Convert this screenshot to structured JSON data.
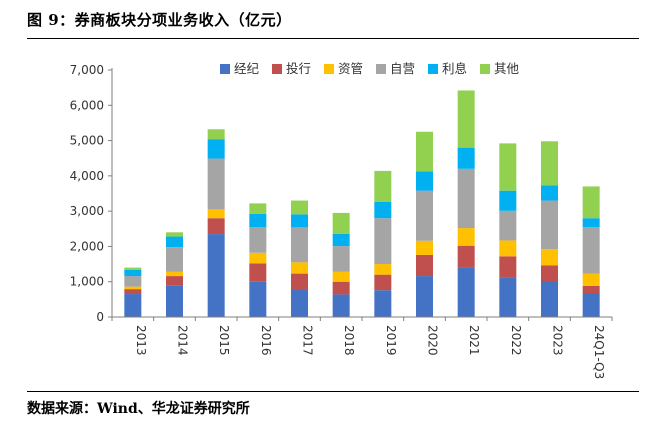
{
  "figure": {
    "title": "图 9：券商板块分项业务收入（亿元）",
    "source": "数据来源：Wind、华龙证券研究所"
  },
  "chart_data": {
    "type": "bar",
    "stacked": true,
    "title": "券商板块分项业务收入（亿元）",
    "xlabel": "",
    "ylabel": "",
    "ylim": [
      0,
      7000
    ],
    "yticks": [
      0,
      1000,
      2000,
      3000,
      4000,
      5000,
      6000,
      7000
    ],
    "ytick_labels": [
      "0",
      "1,000",
      "2,000",
      "3,000",
      "4,000",
      "5,000",
      "6,000",
      "7,000"
    ],
    "grid": false,
    "legend_position": "top-center",
    "categories": [
      "2013",
      "2014",
      "2015",
      "2016",
      "2017",
      "2018",
      "2019",
      "2020",
      "2021",
      "2022",
      "2023",
      "24Q1-Q3"
    ],
    "series": [
      {
        "name": "经纪",
        "color": "#4472C4",
        "values": [
          650,
          900,
          2350,
          1000,
          780,
          640,
          760,
          1160,
          1400,
          1130,
          1020,
          680
        ]
      },
      {
        "name": "投行",
        "color": "#C0504D",
        "values": [
          140,
          260,
          450,
          520,
          450,
          360,
          440,
          600,
          620,
          590,
          440,
          200
        ]
      },
      {
        "name": "资管",
        "color": "#FFC000",
        "values": [
          70,
          120,
          250,
          300,
          320,
          280,
          300,
          400,
          500,
          450,
          460,
          350
        ]
      },
      {
        "name": "自营",
        "color": "#A5A5A5",
        "values": [
          300,
          700,
          1440,
          730,
          990,
          730,
          1300,
          1420,
          1680,
          840,
          1380,
          1320
        ]
      },
      {
        "name": "利息",
        "color": "#00B0F0",
        "values": [
          180,
          300,
          550,
          370,
          370,
          350,
          460,
          550,
          600,
          570,
          430,
          250
        ]
      },
      {
        "name": "其他",
        "color": "#92D050",
        "values": [
          60,
          120,
          280,
          300,
          390,
          590,
          880,
          1120,
          1620,
          1340,
          1250,
          900
        ]
      }
    ]
  }
}
